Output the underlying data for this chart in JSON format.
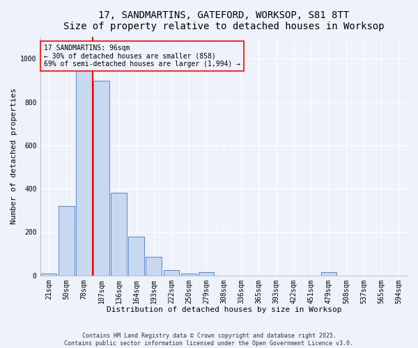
{
  "title_line1": "17, SANDMARTINS, GATEFORD, WORKSOP, S81 8TT",
  "title_line2": "Size of property relative to detached houses in Worksop",
  "xlabel": "Distribution of detached houses by size in Worksop",
  "ylabel": "Number of detached properties",
  "categories": [
    "21sqm",
    "50sqm",
    "78sqm",
    "107sqm",
    "136sqm",
    "164sqm",
    "193sqm",
    "222sqm",
    "250sqm",
    "279sqm",
    "308sqm",
    "336sqm",
    "365sqm",
    "393sqm",
    "422sqm",
    "451sqm",
    "479sqm",
    "508sqm",
    "537sqm",
    "565sqm",
    "594sqm"
  ],
  "values": [
    10,
    320,
    1005,
    900,
    380,
    180,
    85,
    25,
    10,
    15,
    0,
    0,
    0,
    0,
    0,
    0,
    15,
    0,
    0,
    0,
    0
  ],
  "bar_color": "#c8d8f0",
  "bar_edge_color": "#5585c5",
  "vline_color": "red",
  "vline_x": 2.5,
  "annotation_text": "17 SANDMARTINS: 96sqm\n← 30% of detached houses are smaller (858)\n69% of semi-detached houses are larger (1,994) →",
  "box_color": "red",
  "ylim": [
    0,
    1100
  ],
  "yticks": [
    0,
    200,
    400,
    600,
    800,
    1000
  ],
  "footer": "Contains HM Land Registry data © Crown copyright and database right 2025.\nContains public sector information licensed under the Open Government Licence v3.0.",
  "background_color": "#eef2fb",
  "grid_color": "#ffffff",
  "title_fontsize": 10,
  "subtitle_fontsize": 9,
  "axis_label_fontsize": 8,
  "tick_fontsize": 7,
  "footer_fontsize": 6,
  "annotation_fontsize": 7
}
